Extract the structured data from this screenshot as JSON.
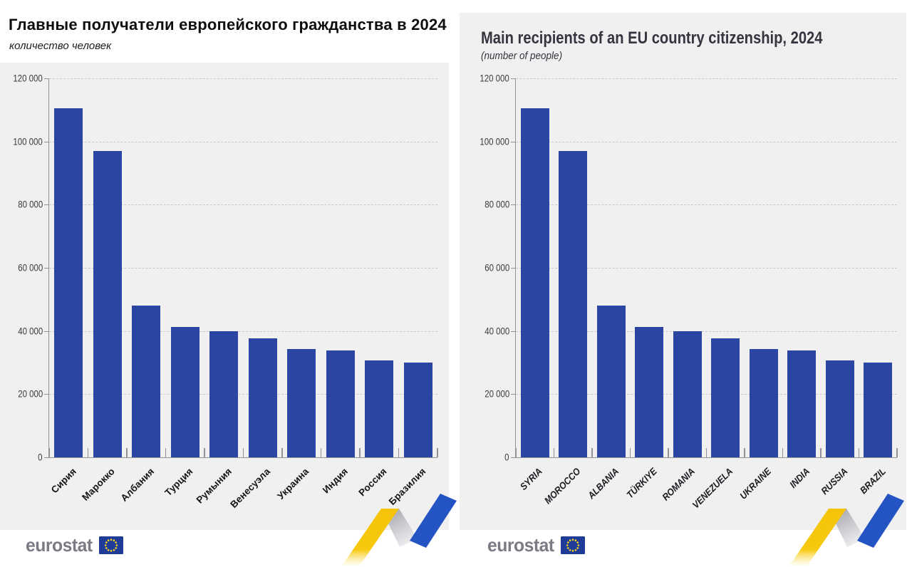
{
  "page": {
    "background": "#ffffff",
    "panel_background": "#f0f0f1"
  },
  "chart_data": [
    {
      "type": "bar",
      "lang": "ru",
      "title": "Главные получатели европейского гражданства в 2024",
      "subtitle": "количество человек",
      "categories": [
        "Сирия",
        "Марокко",
        "Албания",
        "Турция",
        "Румыния",
        "Венесуэла",
        "Украина",
        "Индия",
        "Россия",
        "Бразилия"
      ],
      "values": [
        110500,
        97000,
        48100,
        41300,
        40000,
        37600,
        34400,
        33900,
        30600,
        30000
      ],
      "ylim": [
        0,
        120000
      ],
      "yticks": [
        "120 000",
        "100 000",
        "80 000",
        "60 000",
        "40 000",
        "20 000",
        "0"
      ],
      "grid": "horizontal-dashed",
      "legend": "none",
      "bar_color": "#2b45a2"
    },
    {
      "type": "bar",
      "lang": "en",
      "title": "Main recipients of an EU country citizenship, 2024",
      "subtitle": "(number of people)",
      "categories": [
        "SYRIA",
        "MOROCCO",
        "ALBANIA",
        "TÜRKIYE",
        "ROMANIA",
        "VENEZUELA",
        "UKRAINE",
        "INDIA",
        "RUSSIA",
        "BRAZIL"
      ],
      "values": [
        110500,
        97000,
        48100,
        41300,
        40000,
        37600,
        34400,
        33900,
        30600,
        30000
      ],
      "ylim": [
        0,
        120000
      ],
      "yticks": [
        "120 000",
        "100 000",
        "80 000",
        "60 000",
        "40 000",
        "20 000",
        "0"
      ],
      "grid": "horizontal-dashed",
      "legend": "none",
      "bar_color": "#2b45a2"
    }
  ],
  "footer": {
    "logo_text": "eurostat"
  },
  "decor": {
    "ribbon_yellow": "#f5c30a",
    "ribbon_blue": "#2454c4",
    "ribbon_gray": "#a8a9b0",
    "flag_blue": "#1e3c98",
    "flag_star_yellow": "#ffd81e"
  }
}
